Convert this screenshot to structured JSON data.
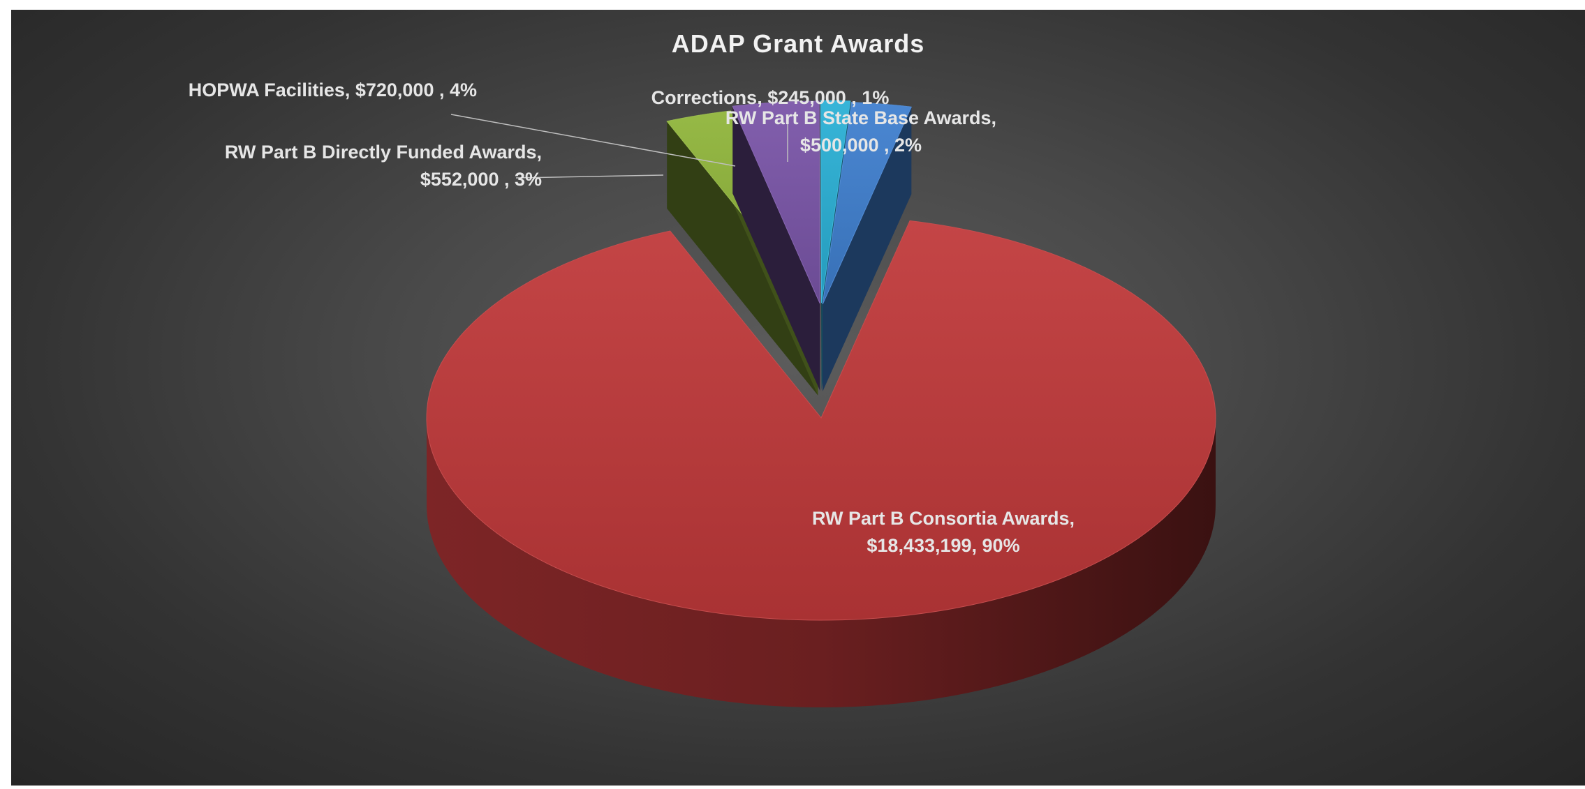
{
  "chart_data": {
    "type": "pie",
    "title": "ADAP Grant Awards",
    "slices": [
      {
        "name": "RW Part B Consortia Awards",
        "value": 18433199,
        "label_lines": [
          "RW Part B Consortia Awards,",
          "$18,433,199, 90%"
        ],
        "color": "#c0393a",
        "exploded": false
      },
      {
        "name": "RW Part B Directly Funded Awards",
        "value": 552000,
        "label_lines": [
          "RW Part B Directly Funded Awards,",
          "$552,000 , 3%"
        ],
        "color": "#8fb53a",
        "exploded": true
      },
      {
        "name": "HOPWA Facilities",
        "value": 720000,
        "label_lines": [
          "HOPWA Facilities, $720,000 , 4%"
        ],
        "color": "#7a55a8",
        "exploded": true
      },
      {
        "name": "Corrections",
        "value": 245000,
        "label_lines": [
          "Corrections, $245,000 , 1%"
        ],
        "color": "#2ab0d6",
        "exploded": true
      },
      {
        "name": "RW Part B State Base Awards",
        "value": 500000,
        "label_lines": [
          "RW Part B State Base Awards,",
          "$500,000 , 2%"
        ],
        "color": "#3f7fcf",
        "exploded": true
      }
    ],
    "style": "3d-exploded-pie",
    "legend": "none"
  }
}
